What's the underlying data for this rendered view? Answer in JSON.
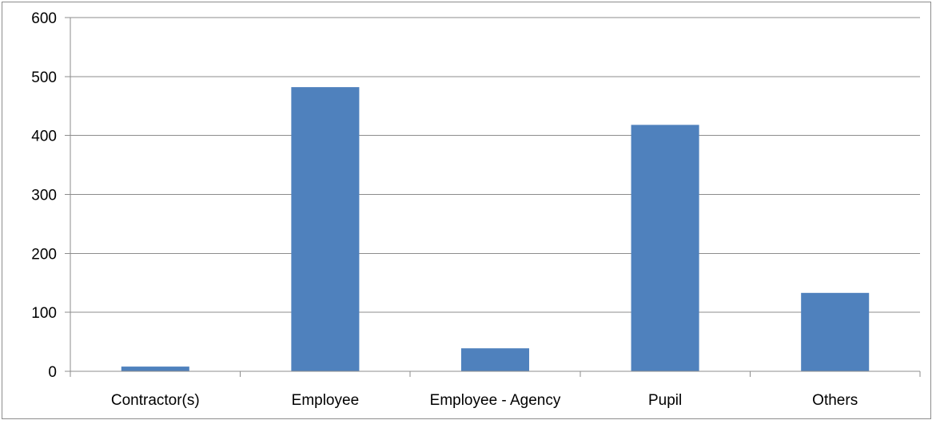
{
  "chart_data": {
    "type": "bar",
    "title": "",
    "xlabel": "",
    "ylabel": "",
    "categories": [
      "Contractor(s)",
      "Employee",
      "Employee - Agency",
      "Pupil",
      "Others"
    ],
    "values": [
      8,
      482,
      39,
      418,
      133
    ],
    "ylim": [
      0,
      600
    ],
    "yticks": [
      0,
      100,
      200,
      300,
      400,
      500,
      600
    ],
    "grid": true,
    "legend": "none",
    "colors": {
      "bar": "#4f81bd",
      "gridline": "#8c8c8c",
      "axis": "#8c8c8c"
    }
  }
}
